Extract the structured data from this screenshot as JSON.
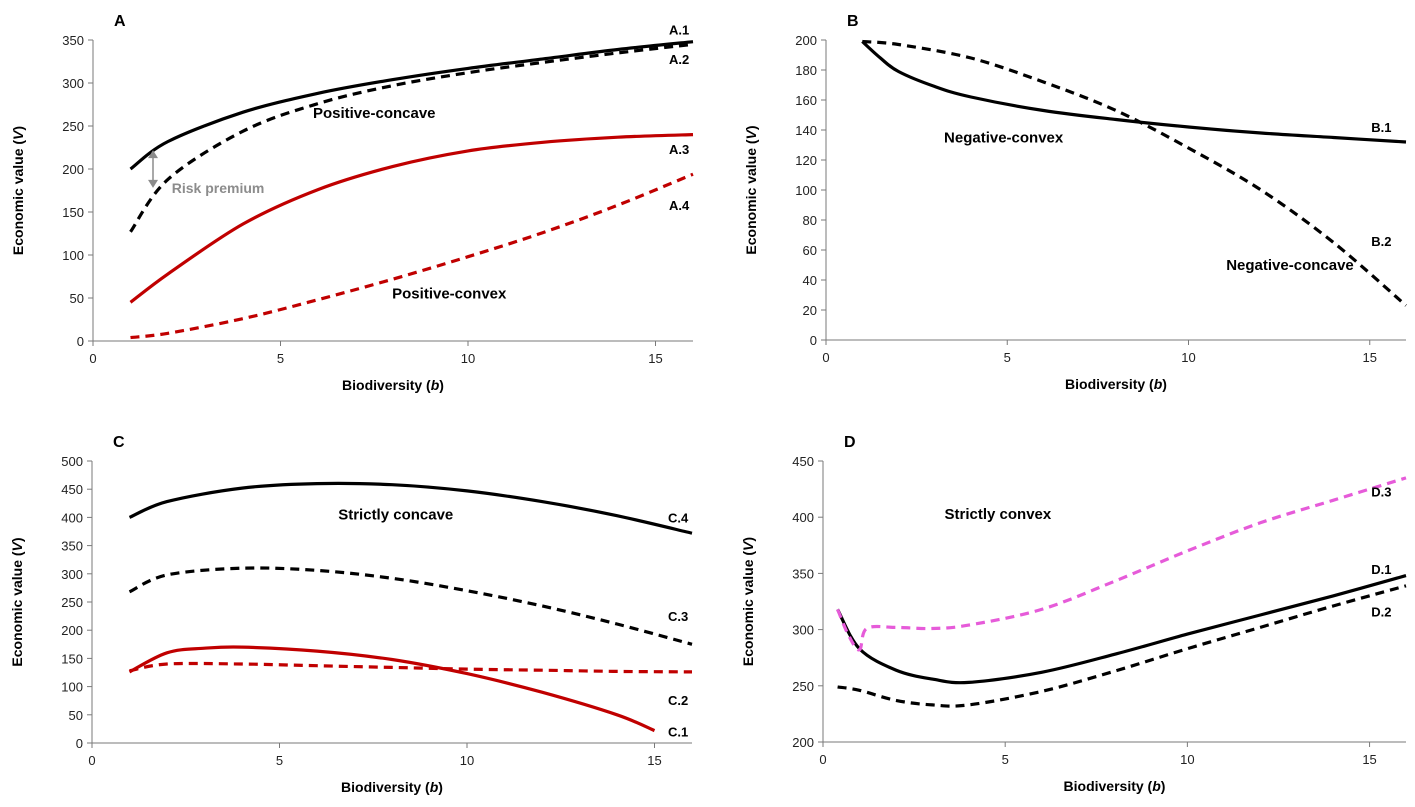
{
  "chart_data": [
    {
      "type": "line",
      "panel": "A",
      "xlabel": "Biodiversity",
      "xlabel_var": "b",
      "ylabel": "Economic value",
      "ylabel_var": "V",
      "xlim": [
        0,
        16
      ],
      "ylim": [
        0,
        350
      ],
      "xticks": [
        0,
        5,
        10,
        15
      ],
      "yticks": [
        0,
        50,
        100,
        150,
        200,
        250,
        300,
        350
      ],
      "annotations": [
        {
          "text": "Positive-concave",
          "x": 7.5,
          "y": 265
        },
        {
          "text": "Positive-convex",
          "x": 9.5,
          "y": 55
        },
        {
          "text": "Risk premium",
          "x": 2.1,
          "y": 178,
          "style": "risk",
          "arrow": {
            "x": 1.6,
            "y1": 222,
            "y2": 178
          }
        }
      ],
      "series": [
        {
          "name": "A.1",
          "color": "#000000",
          "dash": "solid",
          "label_x": 15.9,
          "label_y": 362,
          "label_anchor": "end",
          "x": [
            1,
            2,
            4,
            6,
            8,
            10,
            12,
            14,
            16
          ],
          "y": [
            200,
            232,
            266,
            288,
            304,
            317,
            328,
            339,
            348
          ]
        },
        {
          "name": "A.2",
          "color": "#000000",
          "dash": "dashed",
          "label_x": 15.9,
          "label_y": 328,
          "label_anchor": "end",
          "x": [
            1,
            2,
            4,
            6,
            8,
            10,
            12,
            14,
            16
          ],
          "y": [
            127,
            188,
            244,
            276,
            297,
            312,
            324,
            335,
            345
          ]
        },
        {
          "name": "A.3",
          "color": "#c00000",
          "dash": "solid",
          "label_x": 15.9,
          "label_y": 223,
          "label_anchor": "end",
          "x": [
            1,
            2,
            4,
            6,
            8,
            10,
            12,
            14,
            16
          ],
          "y": [
            45,
            78,
            136,
            176,
            203,
            221,
            231,
            237,
            240
          ]
        },
        {
          "name": "A.4",
          "color": "#c00000",
          "dash": "dashed",
          "label_x": 15.9,
          "label_y": 158,
          "label_anchor": "end",
          "x": [
            1,
            2,
            4,
            6,
            8,
            10,
            12,
            14,
            16
          ],
          "y": [
            4,
            9,
            26,
            48,
            72,
            98,
            126,
            158,
            194
          ]
        }
      ]
    },
    {
      "type": "line",
      "panel": "B",
      "xlabel": "Biodiversity",
      "xlabel_var": "b",
      "ylabel": "Economic value",
      "ylabel_var": "V",
      "xlim": [
        0,
        16
      ],
      "ylim": [
        0,
        200
      ],
      "xticks": [
        0,
        5,
        10,
        15
      ],
      "yticks": [
        0,
        20,
        40,
        60,
        80,
        100,
        120,
        140,
        160,
        180,
        200
      ],
      "annotations": [
        {
          "text": "Negative-convex",
          "x": 4.9,
          "y": 135
        },
        {
          "text": "Negative-concave",
          "x": 12.8,
          "y": 50
        }
      ],
      "series": [
        {
          "name": "B.1",
          "color": "#000000",
          "dash": "solid",
          "label_x": 15.6,
          "label_y": 142,
          "label_anchor": "end",
          "x": [
            1,
            1.5,
            2,
            3,
            4,
            6,
            8,
            10,
            12,
            14,
            16
          ],
          "y": [
            199,
            188,
            179,
            169,
            162,
            153,
            147,
            142,
            138,
            135,
            132
          ]
        },
        {
          "name": "B.2",
          "color": "#000000",
          "dash": "dashed",
          "label_x": 15.6,
          "label_y": 66,
          "label_anchor": "end",
          "x": [
            1,
            2,
            4,
            6,
            8,
            10,
            12,
            14,
            16
          ],
          "y": [
            199,
            197,
            188,
            172,
            153,
            128,
            100,
            65,
            23
          ]
        }
      ]
    },
    {
      "type": "line",
      "panel": "C",
      "xlabel": "Biodiversity",
      "xlabel_var": "b",
      "ylabel": "Economic value",
      "ylabel_var": "V",
      "xlim": [
        0,
        16
      ],
      "ylim": [
        0,
        500
      ],
      "xticks": [
        0,
        5,
        10,
        15
      ],
      "yticks": [
        0,
        50,
        100,
        150,
        200,
        250,
        300,
        350,
        400,
        450,
        500
      ],
      "annotations": [
        {
          "text": "Strictly concave",
          "x": 8.1,
          "y": 405
        }
      ],
      "series": [
        {
          "name": "C.1",
          "color": "#c00000",
          "dash": "solid",
          "label_x": 15.9,
          "label_y": 20,
          "label_anchor": "end",
          "x": [
            1,
            2,
            3,
            4,
            6,
            8,
            10,
            12,
            14,
            15
          ],
          "y": [
            126,
            160,
            168,
            170,
            163,
            148,
            123,
            90,
            50,
            22
          ]
        },
        {
          "name": "C.2",
          "color": "#c00000",
          "dash": "dashed",
          "label_x": 15.9,
          "label_y": 76,
          "label_anchor": "end",
          "x": [
            1,
            2,
            4,
            6,
            8,
            10,
            12,
            14,
            16
          ],
          "y": [
            128,
            140,
            140,
            137,
            134,
            131,
            129,
            127,
            126
          ]
        },
        {
          "name": "C.3",
          "color": "#000000",
          "dash": "dashed",
          "label_x": 15.9,
          "label_y": 225,
          "label_anchor": "end",
          "x": [
            1,
            2,
            4,
            6,
            8,
            10,
            12,
            14,
            16
          ],
          "y": [
            268,
            298,
            310,
            306,
            292,
            270,
            243,
            211,
            175
          ]
        },
        {
          "name": "C.4",
          "color": "#000000",
          "dash": "solid",
          "label_x": 15.9,
          "label_y": 400,
          "label_anchor": "end",
          "x": [
            1,
            2,
            4,
            6,
            8,
            10,
            12,
            14,
            16
          ],
          "y": [
            400,
            428,
            452,
            460,
            458,
            447,
            428,
            403,
            372
          ]
        }
      ]
    },
    {
      "type": "line",
      "panel": "D",
      "xlabel": "Biodiversity",
      "xlabel_var": "b",
      "ylabel": "Economic value",
      "ylabel_var": "V",
      "xlim": [
        0,
        16
      ],
      "ylim": [
        200,
        450
      ],
      "xticks": [
        0,
        5,
        10,
        15
      ],
      "yticks": [
        200,
        250,
        300,
        350,
        400,
        450
      ],
      "annotations": [
        {
          "text": "Strictly convex",
          "x": 4.8,
          "y": 403
        }
      ],
      "series": [
        {
          "name": "D.1",
          "color": "#000000",
          "dash": "solid",
          "label_x": 15.6,
          "label_y": 354,
          "label_anchor": "end",
          "x": [
            0.4,
            1,
            2,
            3,
            4,
            6,
            8,
            10,
            12,
            14,
            16
          ],
          "y": [
            318,
            283,
            264,
            256,
            253,
            262,
            278,
            296,
            313,
            330,
            348
          ]
        },
        {
          "name": "D.2",
          "color": "#000000",
          "dash": "dashed",
          "label_x": 15.6,
          "label_y": 316,
          "label_anchor": "end",
          "x": [
            0.4,
            1,
            2,
            3,
            4,
            6,
            8,
            10,
            12,
            14,
            16
          ],
          "y": [
            249,
            246,
            237,
            233,
            233,
            245,
            263,
            283,
            302,
            321,
            339
          ]
        },
        {
          "name": "D.3",
          "color": "#e65bd9",
          "dash": "dashed",
          "label_x": 15.6,
          "label_y": 423,
          "label_anchor": "end",
          "x": [
            0.4,
            0.7,
            1.0,
            1.2,
            2,
            3,
            4,
            6,
            8,
            10,
            12,
            14,
            16
          ],
          "y": [
            318,
            295,
            282,
            301,
            302,
            301,
            304,
            318,
            343,
            370,
            395,
            415,
            435
          ]
        }
      ]
    }
  ]
}
